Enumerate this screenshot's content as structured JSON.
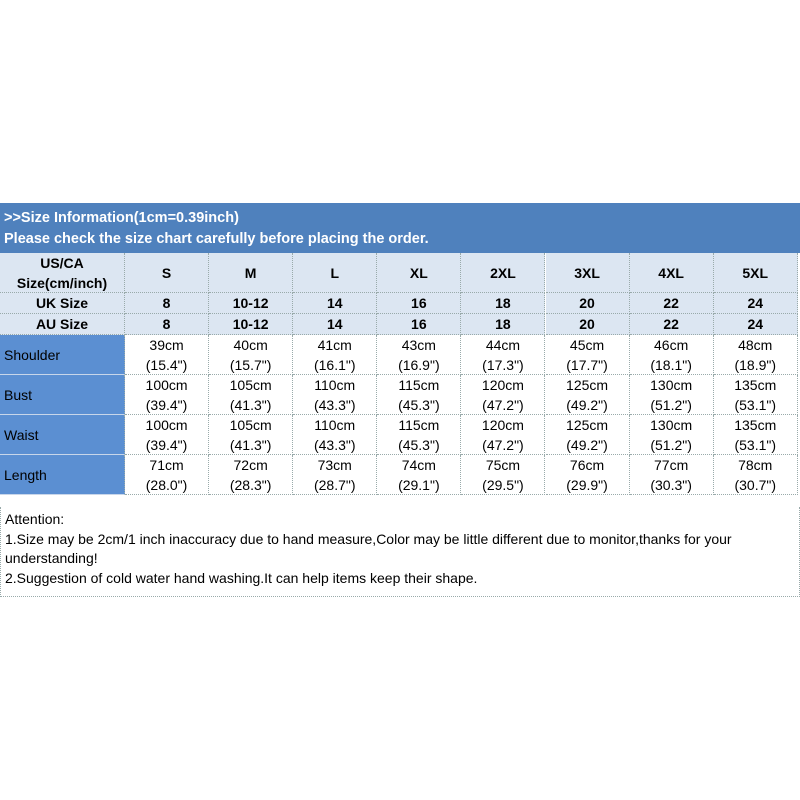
{
  "header": {
    "lines": [
      ">>Size Information(1cm=0.39inch)",
      "Please check the size chart carefully before placing the order."
    ]
  },
  "table": {
    "head": [
      {
        "label": [
          "US/CA",
          "Size(cm/inch)"
        ],
        "cells": [
          "S",
          "M",
          "L",
          "XL",
          "2XL",
          "3XL",
          "4XL",
          "5XL"
        ]
      },
      {
        "label": [
          "UK Size"
        ],
        "cells": [
          "8",
          "10-12",
          "14",
          "16",
          "18",
          "20",
          "22",
          "24"
        ]
      },
      {
        "label": [
          "AU Size"
        ],
        "cells": [
          "8",
          "10-12",
          "14",
          "16",
          "18",
          "20",
          "22",
          "24"
        ]
      }
    ],
    "rows": [
      {
        "label": "Shoulder",
        "cells": [
          [
            "39cm",
            "(15.4\")"
          ],
          [
            "40cm",
            "(15.7\")"
          ],
          [
            "41cm",
            "(16.1\")"
          ],
          [
            "43cm",
            "(16.9\")"
          ],
          [
            "44cm",
            "(17.3\")"
          ],
          [
            "45cm",
            "(17.7\")"
          ],
          [
            "46cm",
            "(18.1\")"
          ],
          [
            "48cm",
            "(18.9\")"
          ]
        ]
      },
      {
        "label": "Bust",
        "cells": [
          [
            "100cm",
            "(39.4\")"
          ],
          [
            "105cm",
            "(41.3\")"
          ],
          [
            "110cm",
            "(43.3\")"
          ],
          [
            "115cm",
            "(45.3\")"
          ],
          [
            "120cm",
            "(47.2\")"
          ],
          [
            "125cm",
            "(49.2\")"
          ],
          [
            "130cm",
            "(51.2\")"
          ],
          [
            "135cm",
            "(53.1\")"
          ]
        ]
      },
      {
        "label": "Waist",
        "cells": [
          [
            "100cm",
            "(39.4\")"
          ],
          [
            "105cm",
            "(41.3\")"
          ],
          [
            "110cm",
            "(43.3\")"
          ],
          [
            "115cm",
            "(45.3\")"
          ],
          [
            "120cm",
            "(47.2\")"
          ],
          [
            "125cm",
            "(49.2\")"
          ],
          [
            "130cm",
            "(51.2\")"
          ],
          [
            "135cm",
            "(53.1\")"
          ]
        ]
      },
      {
        "label": "Length",
        "cells": [
          [
            "71cm",
            "(28.0\")"
          ],
          [
            "72cm",
            "(28.3\")"
          ],
          [
            "73cm",
            "(28.7\")"
          ],
          [
            "74cm",
            "(29.1\")"
          ],
          [
            "75cm",
            "(29.5\")"
          ],
          [
            "76cm",
            "(29.9\")"
          ],
          [
            "77cm",
            "(30.3\")"
          ],
          [
            "78cm",
            "(30.7\")"
          ]
        ]
      }
    ]
  },
  "notes": [
    "Attention:",
    "1.Size may be 2cm/1 inch inaccuracy due to hand measure,Color may be little different due to monitor,thanks for your understanding!",
    "2.Suggestion of cold water hand washing.It can help items keep their shape."
  ]
}
